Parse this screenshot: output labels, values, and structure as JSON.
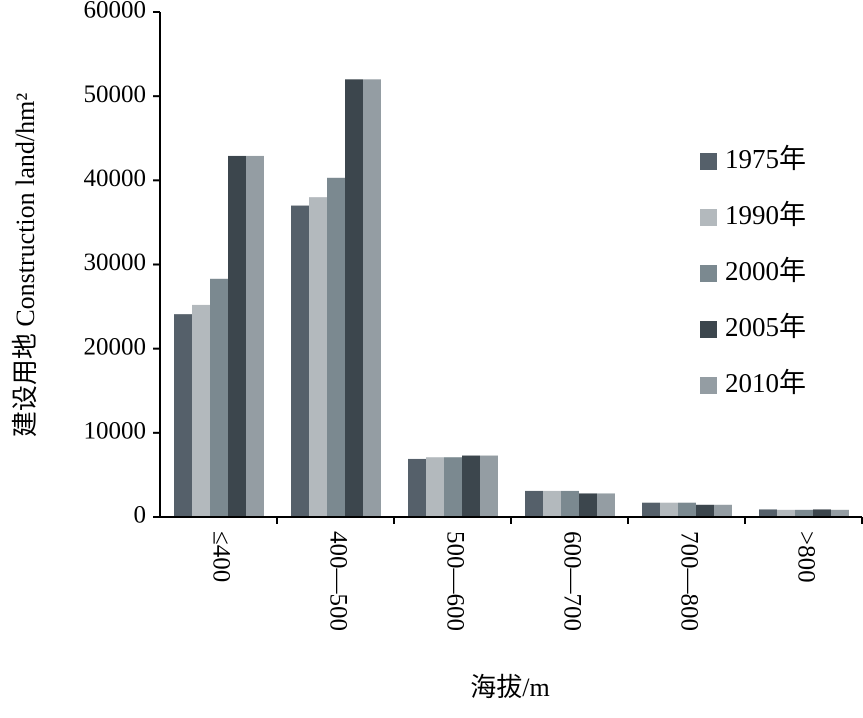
{
  "chart_data": {
    "type": "bar",
    "title": "",
    "ylabel": "建设用地 Construction land/hm²",
    "xlabel": "海拔/m",
    "categories": [
      "≤400",
      "400—500",
      "500—600",
      "600—700",
      "700—800",
      ">800"
    ],
    "y_ticks": [
      "0",
      "10000",
      "20000",
      "30000",
      "40000",
      "50000",
      "60000"
    ],
    "ylim": [
      0,
      60000
    ],
    "grid": false,
    "legend_position": "right",
    "series": [
      {
        "name": "1975年",
        "color": "#55606a",
        "values": [
          24100,
          37000,
          6900,
          3100,
          1700,
          900
        ]
      },
      {
        "name": "1990年",
        "color": "#b3b9bd",
        "values": [
          25200,
          38000,
          7100,
          3100,
          1700,
          850
        ]
      },
      {
        "name": "2000年",
        "color": "#7b8990",
        "values": [
          28300,
          40300,
          7100,
          3100,
          1700,
          850
        ]
      },
      {
        "name": "2005年",
        "color": "#3c464d",
        "values": [
          42900,
          52000,
          7300,
          2800,
          1450,
          900
        ]
      },
      {
        "name": "2010年",
        "color": "#949da3",
        "values": [
          42900,
          52000,
          7300,
          2800,
          1450,
          850
        ]
      }
    ]
  }
}
